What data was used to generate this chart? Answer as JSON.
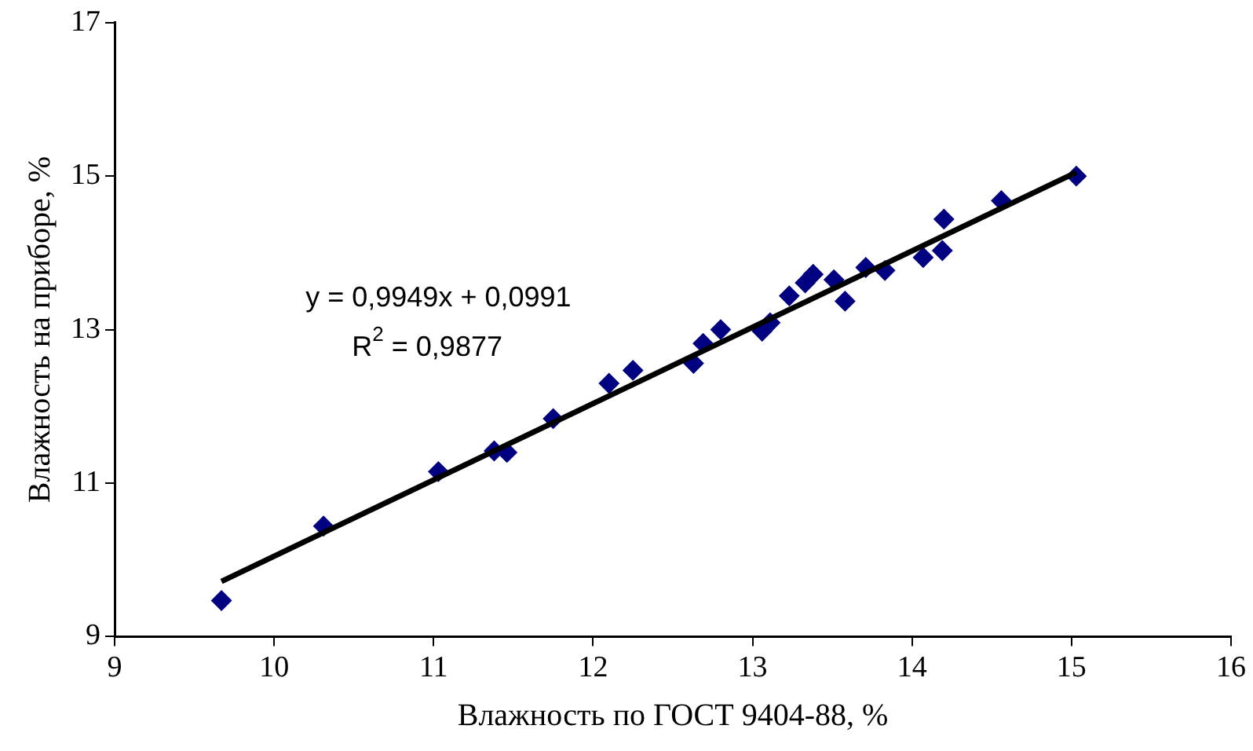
{
  "chart_data": {
    "type": "scatter",
    "xlabel": "Влажность по ГОСТ 9404-88, %",
    "ylabel": "Влажность на приборе, %",
    "marker": "diamond",
    "grid": false,
    "legend": false,
    "xlim": [
      9,
      16
    ],
    "xticks": [
      9,
      10,
      11,
      12,
      13,
      14,
      15,
      16
    ],
    "ylim": [
      9,
      17
    ],
    "yticks": [
      9,
      11,
      13,
      15,
      17
    ],
    "annotations": [
      "y = 0,9949x + 0,0991",
      "R$^{2}$ = 0,9877"
    ],
    "series": [
      {
        "color": "#000080",
        "x": [
          9.67,
          10.31,
          11.03,
          11.38,
          11.46,
          11.75,
          12.1,
          12.25,
          12.63,
          12.69,
          12.8,
          13.06,
          13.11,
          13.23,
          13.33,
          13.38,
          13.51,
          13.58,
          13.71,
          13.83,
          14.07,
          14.19,
          14.2,
          14.56,
          15.03
        ],
        "values": [
          9.47,
          10.44,
          11.15,
          11.42,
          11.4,
          11.84,
          12.3,
          12.47,
          12.56,
          12.82,
          13.0,
          12.98,
          13.09,
          13.44,
          13.61,
          13.72,
          13.65,
          13.37,
          13.81,
          13.77,
          13.94,
          14.03,
          14.44,
          14.68,
          15.0
        ]
      },
      {
        "type": "line",
        "marker": "none",
        "color": "#000000",
        "x": [
          9.67,
          15.03
        ],
        "values": [
          9.72,
          15.05
        ]
      }
    ]
  }
}
